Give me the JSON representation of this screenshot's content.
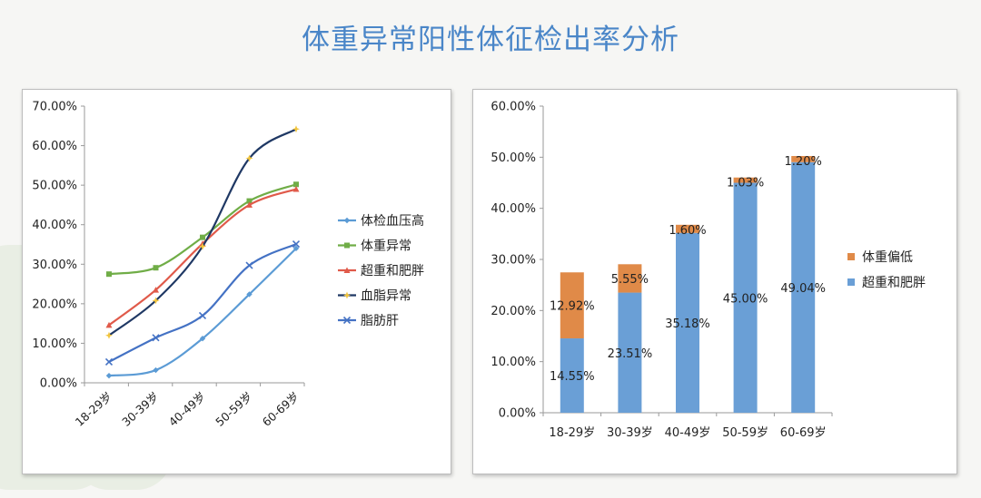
{
  "page": {
    "title": "体重异常阳性体征检出率分析"
  },
  "chart_data": [
    {
      "type": "line",
      "categories": [
        "18-29岁",
        "30-39岁",
        "40-49岁",
        "50-59岁",
        "60-69岁"
      ],
      "ylim": [
        0,
        70
      ],
      "yticks": [
        "0.00%",
        "10.00%",
        "20.00%",
        "30.00%",
        "40.00%",
        "50.00%",
        "60.00%",
        "70.00%"
      ],
      "legend_position": "right",
      "grid": false,
      "series": [
        {
          "name": "体检血压高",
          "color": "#5b9bd5",
          "marker": "diamond",
          "values": [
            1.8,
            3.2,
            11.2,
            22.4,
            34.0
          ]
        },
        {
          "name": "体重异常",
          "color": "#70ad47",
          "marker": "square",
          "values": [
            27.5,
            29.1,
            36.8,
            46.0,
            50.2
          ]
        },
        {
          "name": "超重和肥胖",
          "color": "#e05a4a",
          "marker": "triangle",
          "values": [
            14.6,
            23.5,
            35.2,
            45.0,
            49.0
          ]
        },
        {
          "name": "血脂异常",
          "color": "#1f3864",
          "marker": "star",
          "values": [
            12.0,
            20.8,
            34.5,
            56.8,
            64.2
          ]
        },
        {
          "name": "脂肪肝",
          "color": "#4472c4",
          "marker": "x",
          "values": [
            5.3,
            11.4,
            17.0,
            29.7,
            35.1
          ]
        }
      ]
    },
    {
      "type": "bar",
      "stacked": true,
      "categories": [
        "18-29岁",
        "30-39岁",
        "40-49岁",
        "50-59岁",
        "60-69岁"
      ],
      "ylim": [
        0,
        60
      ],
      "yticks": [
        "0.00%",
        "10.00%",
        "20.00%",
        "30.00%",
        "40.00%",
        "50.00%",
        "60.00%"
      ],
      "legend_position": "right",
      "grid": false,
      "series": [
        {
          "name": "超重和肥胖",
          "color": "#6a9fd6",
          "values": [
            14.55,
            23.51,
            35.18,
            45.0,
            49.04
          ],
          "labels": [
            "14.55%",
            "23.51%",
            "35.18%",
            "45.00%",
            "49.04%"
          ]
        },
        {
          "name": "体重偏低",
          "color": "#e08a48",
          "values": [
            12.92,
            5.55,
            1.6,
            1.03,
            1.2
          ],
          "labels": [
            "12.92%",
            "5.55%",
            "1.60%",
            "1.03%",
            "1.20%"
          ]
        }
      ]
    }
  ]
}
